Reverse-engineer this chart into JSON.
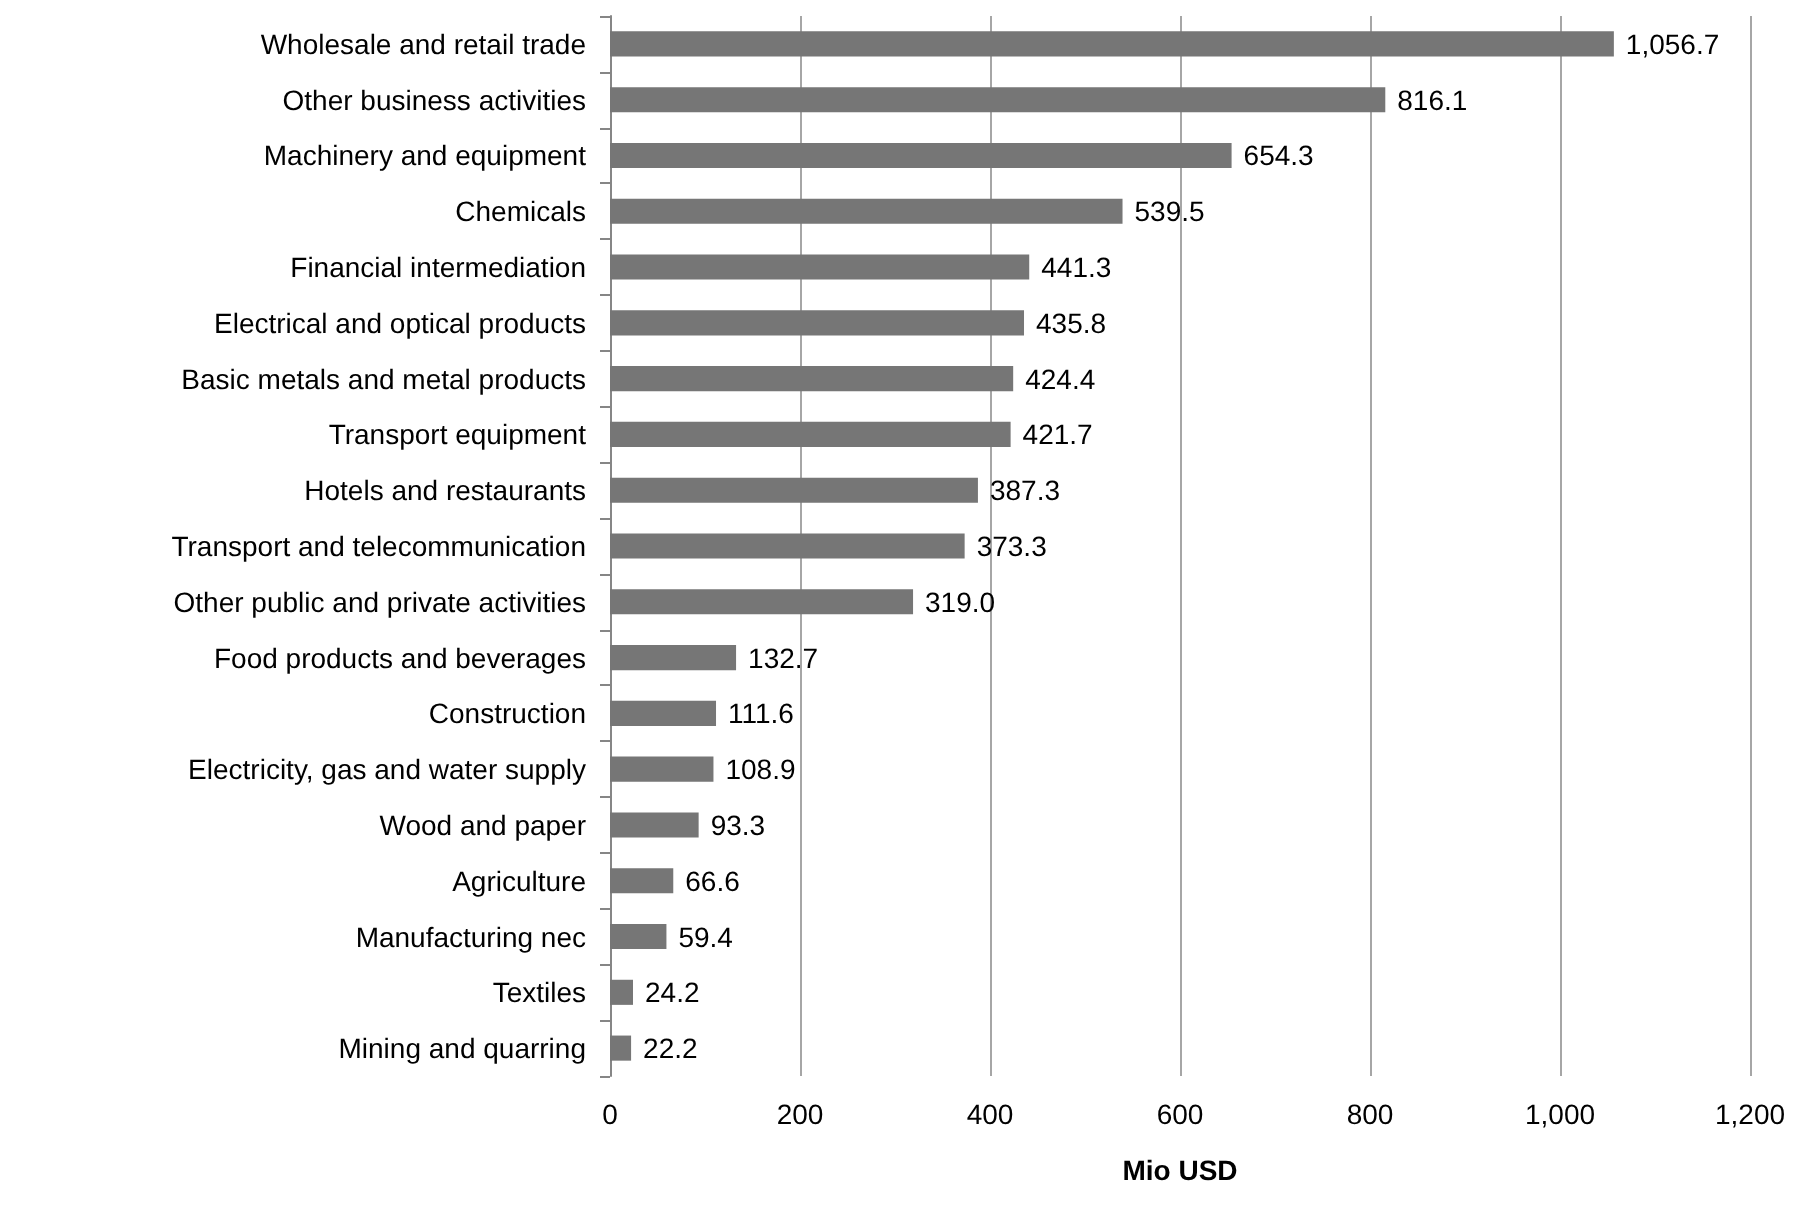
{
  "chart_data": {
    "type": "bar",
    "orientation": "horizontal",
    "xlabel": "Mio USD",
    "categories": [
      "Wholesale and retail trade",
      "Other business activities",
      "Machinery and equipment",
      "Chemicals",
      "Financial intermediation",
      "Electrical and optical products",
      "Basic metals and metal products",
      "Transport equipment",
      "Hotels and restaurants",
      "Transport and telecommunication",
      "Other public and private activities",
      "Food products and beverages",
      "Construction",
      "Electricity, gas and water supply",
      "Wood and paper",
      "Agriculture",
      "Manufacturing nec",
      "Textiles",
      "Mining and quarring"
    ],
    "values": [
      1056.7,
      816.1,
      654.3,
      539.5,
      441.3,
      435.8,
      424.4,
      421.7,
      387.3,
      373.3,
      319.0,
      132.7,
      111.6,
      108.9,
      93.3,
      66.6,
      59.4,
      24.2,
      22.2
    ],
    "value_labels": [
      "1,056.7",
      "816.1",
      "654.3",
      "539.5",
      "441.3",
      "435.8",
      "424.4",
      "421.7",
      "387.3",
      "373.3",
      "319.0",
      "132.7",
      "111.6",
      "108.9",
      "93.3",
      "66.6",
      "59.4",
      "24.2",
      "22.2"
    ],
    "color": "#767676",
    "xlim": [
      0,
      1200
    ],
    "xticks": [
      0,
      200,
      400,
      600,
      800,
      {
        "value": 1000,
        "label": "1,000"
      },
      {
        "value": 1200,
        "label": "1,200"
      }
    ],
    "grid": "x"
  }
}
